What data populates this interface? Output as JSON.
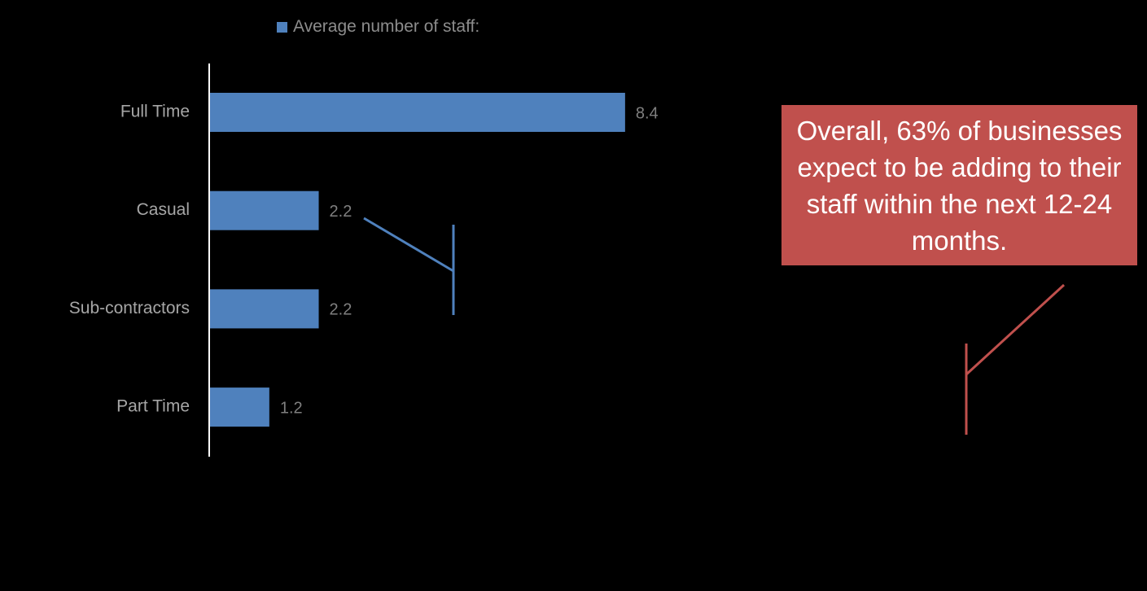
{
  "chart_data": {
    "type": "bar",
    "orientation": "horizontal",
    "categories": [
      "Full Time",
      "Casual",
      "Sub-contractors",
      "Part Time"
    ],
    "series": [
      {
        "name": "Average number of staff:",
        "values": [
          8.4,
          2.2,
          2.2,
          1.2
        ],
        "color": "#4f81bd"
      }
    ],
    "data_labels": [
      "8.4",
      "2.2",
      "2.2",
      "1.2"
    ],
    "xlim": [
      0,
      10
    ],
    "grid": false,
    "legend_position": "top"
  },
  "legend": {
    "label": "Average number of staff:",
    "color": "#4f81bd"
  },
  "callout": {
    "text": "Overall, 63% of businesses expect to be adding to their staff within the next 12-24 months.",
    "color": "#c0504d"
  },
  "colors": {
    "background": "#000000",
    "axis": "#ffffff",
    "category_label": "#a6a6a6",
    "data_label": "#7f7f7f",
    "bar": "#4f81bd",
    "blue_marker": "#4f81bd",
    "red_marker": "#c0504d"
  }
}
